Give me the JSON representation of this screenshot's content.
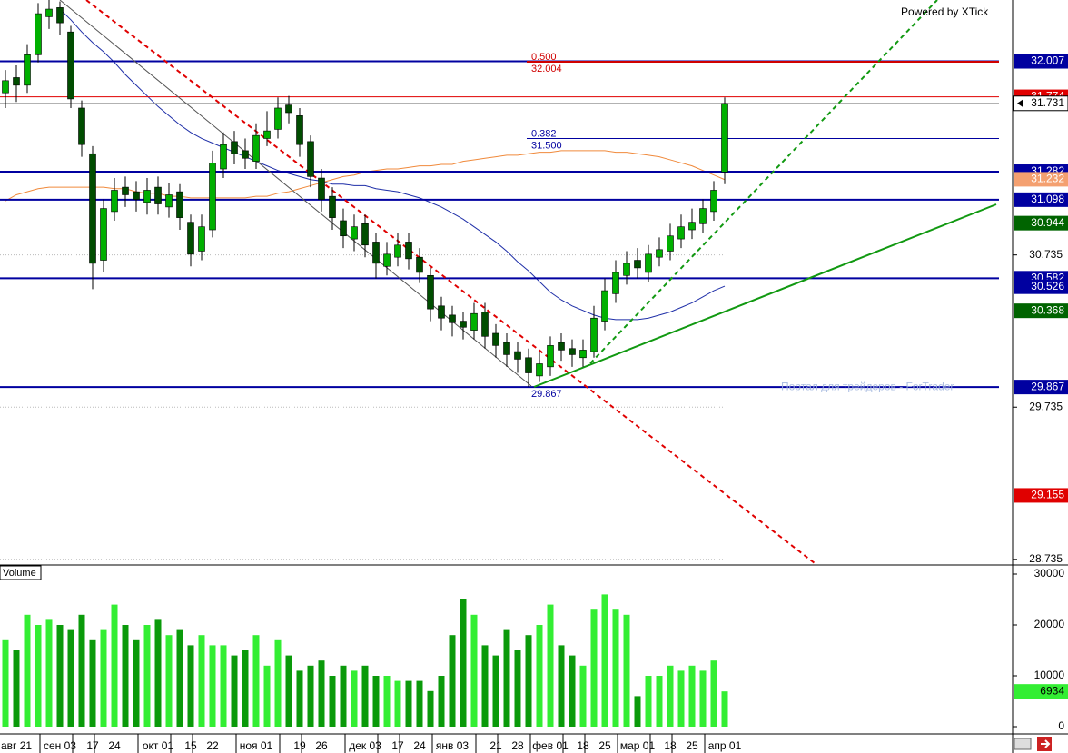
{
  "chart_data": [
    {
      "type": "candlestick",
      "categories": [
        null,
        "авг 21",
        null,
        null,
        null,
        "сен 03",
        null,
        null,
        "17",
        null,
        "24",
        null,
        null,
        null,
        "окт 01",
        null,
        null,
        "15",
        null,
        "22",
        null,
        null,
        null,
        "ноя 01",
        null,
        null,
        null,
        "19",
        null,
        "26",
        null,
        null,
        null,
        "дек 03",
        null,
        null,
        "17",
        null,
        "24",
        null,
        null,
        "янв 03",
        null,
        null,
        null,
        "21",
        null,
        "28",
        null,
        null,
        "фев 01",
        null,
        null,
        "18",
        null,
        "25",
        null,
        null,
        "мар 01",
        null,
        null,
        "18",
        null,
        "25",
        null,
        null,
        "апр 01"
      ],
      "open": [
        31.8,
        31.9,
        31.85,
        32.05,
        32.3,
        32.36,
        32.2,
        31.7,
        31.4,
        30.7,
        31.02,
        31.18,
        31.15,
        31.08,
        31.18,
        31.05,
        31.15,
        30.95,
        30.76,
        30.9,
        31.3,
        31.48,
        31.42,
        31.35,
        31.5,
        31.56,
        31.72,
        31.65,
        31.48,
        31.24,
        31.12,
        30.96,
        30.84,
        30.94,
        30.82,
        30.66,
        30.72,
        30.82,
        30.72,
        30.6,
        30.4,
        30.34,
        30.3,
        30.24,
        30.36,
        30.22,
        30.16,
        30.1,
        30.06,
        29.94,
        30.0,
        30.16,
        30.12,
        30.06,
        30.1,
        30.3,
        30.48,
        30.6,
        30.7,
        30.62,
        30.72,
        30.76,
        30.84,
        30.9,
        30.94,
        31.02,
        31.28
      ],
      "high": [
        31.95,
        31.98,
        32.12,
        32.39,
        32.41,
        32.4,
        32.24,
        31.75,
        31.45,
        31.1,
        31.24,
        31.25,
        31.22,
        31.24,
        31.25,
        31.21,
        31.2,
        31.0,
        31.0,
        31.42,
        31.54,
        31.55,
        31.5,
        31.6,
        31.68,
        31.77,
        31.78,
        31.7,
        31.52,
        31.3,
        31.18,
        31.04,
        31.0,
        31.0,
        30.88,
        30.82,
        30.88,
        30.88,
        30.78,
        30.65,
        30.46,
        30.4,
        30.36,
        30.42,
        30.42,
        30.28,
        30.22,
        30.16,
        30.12,
        30.1,
        30.2,
        30.22,
        30.18,
        30.18,
        30.4,
        30.58,
        30.7,
        30.76,
        30.78,
        30.8,
        30.85,
        30.94,
        31.0,
        31.04,
        31.1,
        31.22,
        31.77
      ],
      "low": [
        31.7,
        31.74,
        31.8,
        32.0,
        32.22,
        32.18,
        31.7,
        31.38,
        30.51,
        30.62,
        30.96,
        31.05,
        31.02,
        31.0,
        31.0,
        30.98,
        30.9,
        30.66,
        30.7,
        30.85,
        31.24,
        31.33,
        31.3,
        31.3,
        31.45,
        31.5,
        31.6,
        31.38,
        31.18,
        31.02,
        30.9,
        30.78,
        30.76,
        30.72,
        30.58,
        30.6,
        30.66,
        30.64,
        30.55,
        30.3,
        30.24,
        30.2,
        30.18,
        30.18,
        30.12,
        30.06,
        30.0,
        29.96,
        29.867,
        29.9,
        29.94,
        30.04,
        30.0,
        30.0,
        30.06,
        30.24,
        30.42,
        30.54,
        30.58,
        30.56,
        30.66,
        30.7,
        30.78,
        30.84,
        30.88,
        30.96,
        31.2
      ],
      "close": [
        31.88,
        31.85,
        32.05,
        32.32,
        32.35,
        32.26,
        31.76,
        31.46,
        30.68,
        31.04,
        31.16,
        31.13,
        31.1,
        31.16,
        31.07,
        31.13,
        30.98,
        30.74,
        30.92,
        31.34,
        31.46,
        31.4,
        31.37,
        31.52,
        31.55,
        31.7,
        31.67,
        31.46,
        31.25,
        31.1,
        30.98,
        30.86,
        30.92,
        30.8,
        30.68,
        30.74,
        30.8,
        30.71,
        30.62,
        30.38,
        30.32,
        30.29,
        30.26,
        30.35,
        30.2,
        30.14,
        30.08,
        30.05,
        29.96,
        30.02,
        30.14,
        30.11,
        30.08,
        30.11,
        30.32,
        30.5,
        30.62,
        30.68,
        30.65,
        30.74,
        30.77,
        30.86,
        30.92,
        30.95,
        31.04,
        31.16,
        31.73
      ],
      "up_color": "#00b000",
      "down_color": "#004d00",
      "series": [
        {
          "type": "line",
          "color": "#1f2fa8",
          "values": [
            null,
            null,
            null,
            null,
            null,
            32.35,
            32.28,
            32.2,
            32.13,
            32.07,
            32.0,
            31.92,
            31.85,
            31.78,
            31.71,
            31.65,
            31.59,
            31.54,
            31.5,
            31.47,
            31.44,
            31.41,
            31.38,
            31.35,
            31.32,
            31.29,
            31.27,
            31.25,
            31.23,
            31.22,
            31.2,
            31.2,
            31.19,
            31.19,
            31.17,
            31.16,
            31.15,
            31.13,
            31.11,
            31.08,
            31.05,
            31.01,
            30.97,
            30.92,
            30.87,
            30.82,
            30.76,
            30.69,
            30.63,
            30.56,
            30.49,
            30.44,
            30.4,
            30.37,
            30.34,
            30.32,
            30.31,
            30.31,
            30.31,
            30.32,
            30.34,
            30.36,
            30.39,
            30.42,
            30.46,
            30.5,
            30.53
          ]
        },
        {
          "type": "line",
          "color": "#f08a3c",
          "values": [
            31.09,
            31.13,
            31.15,
            31.17,
            31.18,
            31.18,
            31.18,
            31.18,
            31.18,
            31.18,
            31.17,
            31.17,
            31.15,
            31.14,
            31.14,
            31.12,
            31.12,
            31.11,
            31.11,
            31.11,
            31.11,
            31.11,
            31.11,
            31.12,
            31.12,
            31.14,
            31.15,
            31.17,
            31.19,
            31.21,
            31.23,
            31.25,
            31.26,
            31.28,
            31.29,
            31.3,
            31.3,
            31.31,
            31.32,
            31.32,
            31.33,
            31.33,
            31.35,
            31.36,
            31.37,
            31.38,
            31.39,
            31.39,
            31.4,
            31.41,
            31.41,
            31.42,
            31.42,
            31.42,
            31.42,
            31.42,
            31.41,
            31.41,
            31.4,
            31.39,
            31.38,
            31.36,
            31.34,
            31.32,
            31.29,
            31.26,
            31.23
          ]
        }
      ],
      "ylim": [
        28.71,
        32.41
      ],
      "yticks": [
        28.735,
        29.735,
        30.735
      ],
      "grid": true,
      "price_markers": [
        {
          "value": 31.774,
          "color": "#e00000",
          "text_color": "#ffffff",
          "line": true
        },
        {
          "value": 31.731,
          "color": "#ffffff",
          "text_color": "#000000",
          "line": true
        },
        {
          "value": 32.007,
          "color": "#0000a0",
          "text_color": "#ffffff",
          "line": true
        },
        {
          "value": 31.282,
          "color": "#0000a0",
          "text_color": "#ffffff",
          "line": true
        },
        {
          "value": 31.232,
          "color": "#f4a070",
          "text_color": "#ffffff",
          "line": false
        },
        {
          "value": 31.098,
          "color": "#0000a0",
          "text_color": "#ffffff",
          "line": true
        },
        {
          "value": 30.944,
          "color": "#006400",
          "text_color": "#ffffff",
          "line": false
        },
        {
          "value": 30.582,
          "color": "#0000a0",
          "text_color": "#ffffff",
          "line": true
        },
        {
          "value": 30.526,
          "color": "#0000a0",
          "text_color": "#ffffff",
          "line": false
        },
        {
          "value": 30.368,
          "color": "#006400",
          "text_color": "#ffffff",
          "line": false
        },
        {
          "value": 29.867,
          "color": "#0000a0",
          "text_color": "#ffffff",
          "line": true
        },
        {
          "value": 29.155,
          "color": "#e00000",
          "text_color": "#ffffff",
          "line": false
        }
      ],
      "fib_levels": [
        {
          "ratio": {
            "value": 0.5,
            "label": "0.500"
          },
          "price": 32.004,
          "color": "#d00000"
        },
        {
          "ratio": {
            "value": 0.382,
            "label": "0.382"
          },
          "price": {
            "value": 31.5,
            "label": "31.500"
          },
          "color": "#0000a0"
        }
      ],
      "fib_low": 29.867,
      "watermark": "Портал для трейдеров - ForTrader",
      "credit": "Powered by XTick"
    },
    {
      "type": "bar",
      "title": "Volume",
      "values": [
        17000,
        15000,
        22000,
        20000,
        21000,
        20000,
        19000,
        22000,
        17000,
        19000,
        24000,
        20000,
        17000,
        20000,
        21000,
        18000,
        19000,
        16000,
        18000,
        16000,
        16000,
        14000,
        15000,
        18000,
        12000,
        17000,
        14000,
        11000,
        12000,
        13000,
        10000,
        12000,
        11000,
        12000,
        10000,
        10000,
        9000,
        9000,
        9000,
        7000,
        10000,
        18000,
        25000,
        22000,
        16000,
        14000,
        19000,
        15000,
        18000,
        20000,
        24000,
        16000,
        14000,
        12000,
        23000,
        26000,
        23000,
        22000,
        6000,
        10000,
        10000,
        12000,
        11000,
        12000,
        11000,
        13000,
        6934
      ],
      "up_color": "#33ee33",
      "down_color": "#0a9a0a",
      "ylim": [
        0,
        30000
      ],
      "yticks": [
        0,
        10000,
        20000,
        30000
      ],
      "last_marker_color": "#33ee33"
    }
  ]
}
